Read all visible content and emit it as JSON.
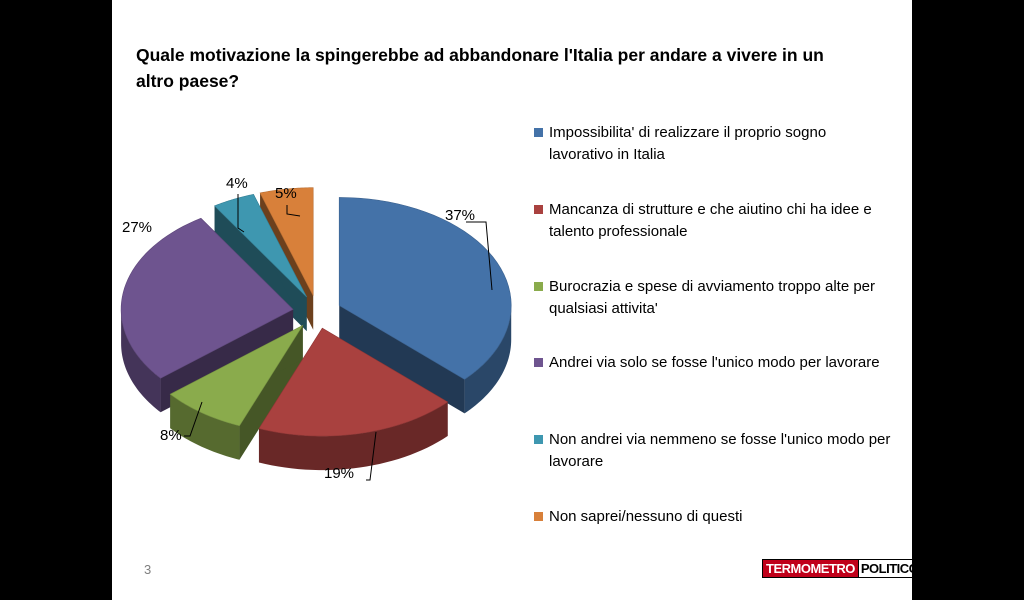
{
  "slide": {
    "title": "Quale motivazione la spingerebbe ad abbandonare l'Italia per andare a vivere in un altro paese?",
    "page_number": "3",
    "logo": {
      "part1": "TERMOMETRO",
      "part2": "POLITICO"
    }
  },
  "chart_data": {
    "type": "pie",
    "title": "Quale motivazione la spingerebbe ad abbandonare l'Italia per andare a vivere in un altro paese?",
    "legend_position": "right",
    "slices": [
      {
        "label": "Impossibilita' di realizzare il proprio sogno lavorativo in Italia",
        "value": 37,
        "display": "37%",
        "color": "#4472a8"
      },
      {
        "label": "Mancanza di strutture e che aiutino chi ha idee e talento professionale",
        "value": 19,
        "display": "19%",
        "color": "#a9413f"
      },
      {
        "label": "Burocrazia e spese di avviamento troppo alte per qualsiasi attivita'",
        "value": 8,
        "display": "8%",
        "color": "#8aab4c"
      },
      {
        "label": "Andrei via solo se fosse l'unico modo per lavorare",
        "value": 27,
        "display": "27%",
        "color": "#6e548f"
      },
      {
        "label": "Non andrei via nemmeno se fosse l'unico modo per lavorare",
        "value": 4,
        "display": "4%",
        "color": "#3e97b0"
      },
      {
        "label": "Non saprei/nessuno di questi",
        "value": 5,
        "display": "5%",
        "color": "#d8803a"
      }
    ]
  }
}
